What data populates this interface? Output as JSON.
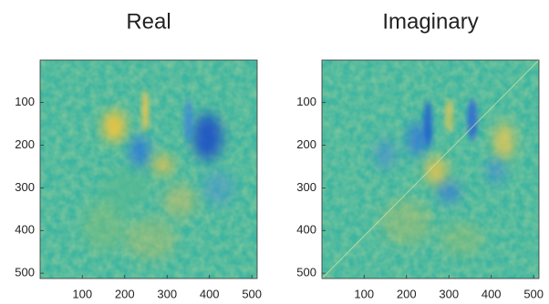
{
  "chart_data": [
    {
      "type": "image",
      "title": "Real",
      "xlim": [
        0.5,
        512.5
      ],
      "ylim": [
        0.5,
        512.5
      ],
      "y_reversed": true,
      "xticks": [
        100,
        200,
        300,
        400,
        500
      ],
      "yticks": [
        100,
        200,
        300,
        400,
        500
      ]
    },
    {
      "type": "image",
      "title": "Imaginary",
      "xlim": [
        0.5,
        512.5
      ],
      "ylim": [
        0.5,
        512.5
      ],
      "y_reversed": true,
      "xticks": [
        100,
        200,
        300,
        400,
        500
      ],
      "yticks": [
        100,
        200,
        300,
        400,
        500
      ]
    }
  ]
}
